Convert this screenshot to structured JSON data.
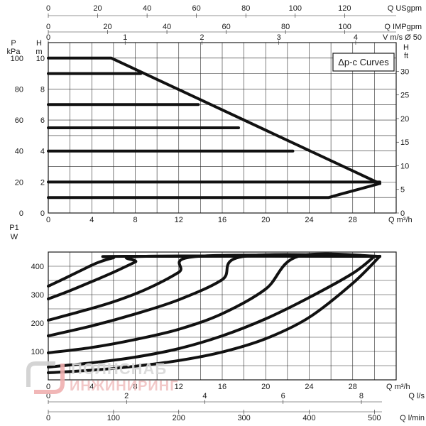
{
  "chart_data": [
    {
      "type": "line",
      "title": "",
      "legend_box": "Δp-c Curves",
      "xlabel": "Q m³/h",
      "ylabel_left_pressure": "P kPa",
      "ylabel_left_head": "H m",
      "ylabel_right": "H ft",
      "xlim": [
        0,
        32
      ],
      "ylim": [
        0,
        11
      ],
      "x_ticks": [
        "0",
        "4",
        "8",
        "12",
        "16",
        "20",
        "24",
        "28"
      ],
      "y_ticks_head": [
        "0",
        "2",
        "4",
        "6",
        "8",
        "10"
      ],
      "y_ticks_pressure": [
        "0",
        "20",
        "40",
        "60",
        "80",
        "100"
      ],
      "y_ticks_ft": [
        "0",
        "5",
        "10",
        "15",
        "20",
        "25",
        "30"
      ],
      "top_axes": [
        {
          "label": "Q USgpm",
          "ticks": [
            "0",
            "20",
            "40",
            "60",
            "80",
            "100",
            "120"
          ]
        },
        {
          "label": "Q IMPgpm",
          "ticks": [
            "0",
            "20",
            "40",
            "60",
            "80",
            "100"
          ]
        },
        {
          "label": "V m/s Ø 50",
          "ticks": [
            "0",
            "1",
            "2",
            "3",
            "4"
          ]
        }
      ],
      "grid": true,
      "series": [
        {
          "x": [
            0,
            5.8,
            30.5
          ],
          "y": [
            10,
            10,
            1.9
          ]
        },
        {
          "x": [
            0,
            8.5
          ],
          "y": [
            9,
            9
          ]
        },
        {
          "x": [
            0,
            13.8
          ],
          "y": [
            7,
            7
          ]
        },
        {
          "x": [
            0,
            17.5
          ],
          "y": [
            5.5,
            5.5
          ]
        },
        {
          "x": [
            0,
            22.5
          ],
          "y": [
            4,
            4
          ]
        },
        {
          "x": [
            0,
            30.5
          ],
          "y": [
            2,
            2
          ]
        },
        {
          "x": [
            0,
            25.8,
            26.8,
            30.5
          ],
          "y": [
            1,
            1,
            1.2,
            1.9
          ]
        }
      ]
    },
    {
      "type": "line",
      "title": "",
      "xlabel": "Q m³/h",
      "ylabel": "P1 W",
      "xlim": [
        0,
        32
      ],
      "ylim": [
        0,
        450
      ],
      "x_ticks": [
        "0",
        "4",
        "8",
        "12",
        "16",
        "20",
        "24",
        "28"
      ],
      "y_ticks": [
        "100",
        "200",
        "300",
        "400"
      ],
      "bottom_axes": [
        {
          "label": "Q l/s",
          "ticks": [
            "0",
            "2",
            "4",
            "6",
            "8"
          ]
        },
        {
          "label": "Q l/min",
          "ticks": [
            "0",
            "100",
            "200",
            "300",
            "400",
            "500"
          ]
        }
      ],
      "grid": true,
      "series": [
        {
          "x": [
            0,
            1.5,
            3,
            4.5,
            6,
            7,
            30.5
          ],
          "y": [
            330,
            357,
            385,
            412,
            430,
            435,
            435
          ]
        },
        {
          "x": [
            0,
            2,
            4,
            6,
            8,
            9,
            30.5
          ],
          "y": [
            285,
            314,
            346,
            379,
            415,
            435,
            435
          ]
        },
        {
          "x": [
            0,
            3,
            6,
            9,
            12,
            13.8,
            30.5
          ],
          "y": [
            210,
            241,
            275,
            319,
            379,
            435,
            435
          ]
        },
        {
          "x": [
            0,
            4,
            8,
            12,
            16,
            18,
            30.5
          ],
          "y": [
            155,
            190,
            232,
            282,
            353,
            435,
            435
          ]
        },
        {
          "x": [
            0,
            4,
            8,
            12,
            16,
            20,
            23,
            30.5
          ],
          "y": [
            95,
            114,
            142,
            178,
            233,
            320,
            435,
            435
          ]
        },
        {
          "x": [
            0,
            4,
            8,
            12,
            16,
            20,
            24,
            28,
            30
          ],
          "y": [
            45,
            60,
            80,
            110,
            155,
            215,
            290,
            375,
            435
          ]
        },
        {
          "x": [
            0,
            4,
            8,
            12,
            16,
            20,
            24,
            28,
            30.5
          ],
          "y": [
            25,
            34,
            48,
            68,
            98,
            145,
            220,
            340,
            435
          ]
        }
      ]
    }
  ]
}
